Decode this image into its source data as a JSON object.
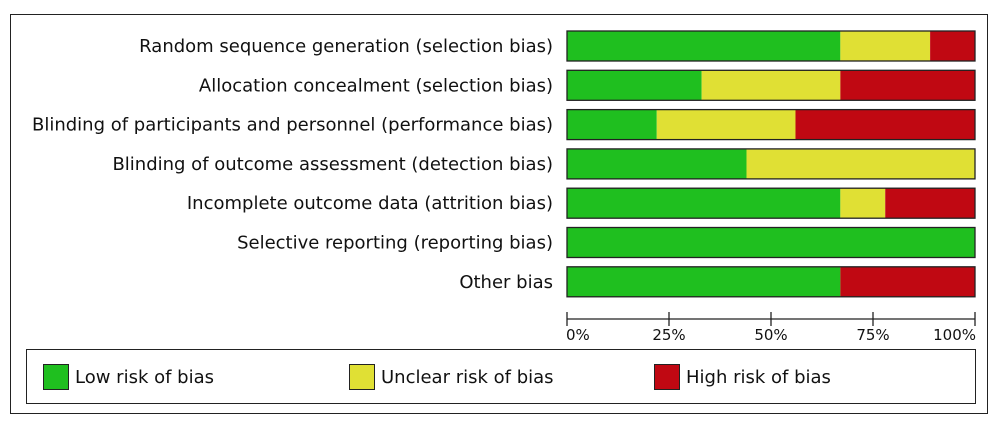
{
  "chart_data": {
    "type": "bar",
    "stacked": true,
    "orientation": "horizontal",
    "categories": [
      "Random sequence generation (selection bias)",
      "Allocation concealment (selection bias)",
      "Blinding of participants and personnel (performance bias)",
      "Blinding of outcome assessment (detection bias)",
      "Incomplete outcome data (attrition bias)",
      "Selective reporting (reporting bias)",
      "Other bias"
    ],
    "series": [
      {
        "name": "Low risk of bias",
        "color": "#1fbf1f",
        "values": [
          67,
          33,
          22,
          44,
          67,
          100,
          67
        ]
      },
      {
        "name": "Unclear risk of bias",
        "color": "#e0e034",
        "values": [
          22,
          34,
          34,
          56,
          11,
          0,
          0
        ]
      },
      {
        "name": "High risk of bias",
        "color": "#c00812",
        "values": [
          11,
          33,
          44,
          0,
          22,
          0,
          33
        ]
      }
    ],
    "xlim": [
      0,
      100
    ],
    "x_ticks": [
      0,
      25,
      50,
      75,
      100
    ],
    "x_tick_labels": [
      "0%",
      "25%",
      "50%",
      "75%",
      "100%"
    ],
    "legend_position": "bottom"
  },
  "legend": {
    "low": "Low risk of bias",
    "unclear": "Unclear risk of bias",
    "high": "High risk of bias"
  }
}
